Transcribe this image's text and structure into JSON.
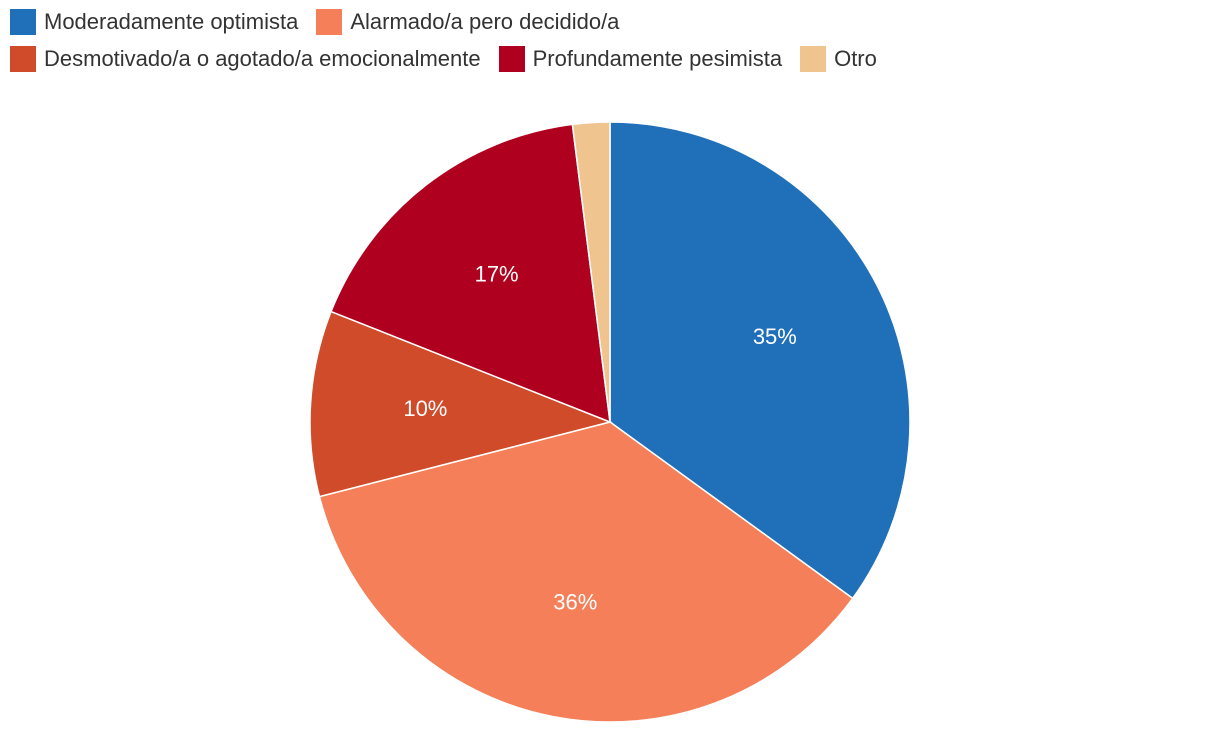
{
  "chart_data": {
    "type": "pie",
    "title": "",
    "legend_position": "top-left",
    "slices": [
      {
        "name": "Moderadamente optimista",
        "value": 35,
        "label": "35%",
        "color": "#2070b9"
      },
      {
        "name": "Alarmado/a pero decidido/a",
        "value": 36,
        "label": "36%",
        "color": "#f47f58"
      },
      {
        "name": "Desmotivado/a o agotado/a emocionalmente",
        "value": 10,
        "label": "10%",
        "color": "#cf4b29"
      },
      {
        "name": "Profundamente pesimista",
        "value": 17,
        "label": "17%",
        "color": "#b0001f"
      },
      {
        "name": "Otro",
        "value": 2,
        "label": "",
        "color": "#f0c48f"
      }
    ]
  }
}
